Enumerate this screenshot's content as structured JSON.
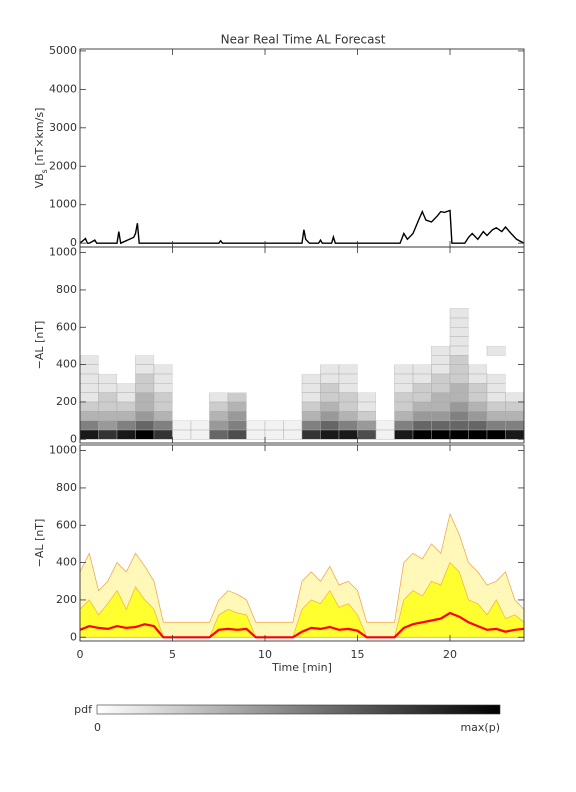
{
  "chart_data": [
    {
      "type": "line",
      "title": "Near Real Time AL Forecast",
      "ylabel": "VB",
      "ylabel_sub": "s",
      "ylabel_unit": " [nT×km/s]",
      "xlim": [
        0,
        24
      ],
      "xticks": [
        0,
        5,
        10,
        15,
        20
      ],
      "show_xtick_labels": false,
      "ylim": [
        -100,
        5050
      ],
      "yticks": [
        0,
        1000,
        2000,
        3000,
        4000,
        5000
      ],
      "color": "#000000",
      "x": [
        0,
        0.3,
        0.4,
        0.5,
        0.8,
        0.9,
        1,
        2,
        2.1,
        2.2,
        2.9,
        3.0,
        3.1,
        3.2,
        4.5,
        7.5,
        7.6,
        7.7,
        12,
        12.1,
        12.2,
        12.4,
        12.9,
        13.0,
        13.1,
        13.6,
        13.7,
        13.8,
        14,
        17.3,
        17.5,
        17.7,
        18,
        18.3,
        18.5,
        18.7,
        19,
        19.3,
        19.5,
        19.7,
        20,
        20.1,
        20.3,
        20.5,
        20.8,
        21,
        21.2,
        21.5,
        21.8,
        22,
        22.3,
        22.5,
        22.8,
        23,
        23.3,
        23.6,
        24
      ],
      "values": [
        0,
        120,
        0,
        0,
        80,
        0,
        0,
        0,
        300,
        0,
        150,
        250,
        520,
        0,
        0,
        0,
        60,
        0,
        0,
        350,
        100,
        0,
        0,
        80,
        0,
        0,
        160,
        0,
        0,
        0,
        250,
        100,
        250,
        600,
        820,
        600,
        550,
        700,
        820,
        800,
        850,
        0,
        0,
        0,
        0,
        150,
        250,
        100,
        300,
        200,
        350,
        400,
        300,
        420,
        250,
        100,
        0
      ]
    },
    {
      "type": "heatmap",
      "ylabel": "−AL [nT]",
      "xlim": [
        0,
        24
      ],
      "xticks": [
        0,
        5,
        10,
        15,
        20
      ],
      "show_xtick_labels": false,
      "ylim": [
        -20,
        1030
      ],
      "yticks": [
        0,
        200,
        400,
        600,
        800,
        1000
      ],
      "t_bins": [
        0,
        1,
        2,
        3,
        4,
        5,
        6,
        7,
        8,
        9,
        10,
        11,
        12,
        13,
        14,
        15,
        16,
        17,
        18,
        19,
        20,
        21,
        22,
        23,
        24
      ],
      "al_bins": [
        0,
        50,
        100,
        150,
        200,
        250,
        300,
        350,
        400,
        450,
        500,
        550,
        600,
        650,
        700
      ],
      "pdf": [
        [
          0.9,
          0.8,
          0.9,
          1,
          0.8,
          0.05,
          0.05,
          0.6,
          0.7,
          0.05,
          0.05,
          0.05,
          0.8,
          0.9,
          0.9,
          0.7,
          0.05,
          0.9,
          1,
          1,
          1,
          1,
          1,
          0.9
        ],
        [
          0.5,
          0.4,
          0.5,
          0.6,
          0.5,
          0.05,
          0.05,
          0.4,
          0.5,
          0.05,
          0.05,
          0.05,
          0.5,
          0.6,
          0.5,
          0.4,
          0.05,
          0.5,
          0.6,
          0.6,
          0.6,
          0.6,
          0.5,
          0.5
        ],
        [
          0.3,
          0.3,
          0.3,
          0.4,
          0.3,
          0,
          0,
          0.3,
          0.4,
          0,
          0,
          0,
          0.3,
          0.4,
          0.3,
          0.2,
          0,
          0.3,
          0.4,
          0.4,
          0.5,
          0.4,
          0.3,
          0.3
        ],
        [
          0.2,
          0.2,
          0.2,
          0.3,
          0.2,
          0,
          0,
          0.2,
          0.3,
          0,
          0,
          0,
          0.2,
          0.3,
          0.2,
          0.1,
          0,
          0.2,
          0.3,
          0.3,
          0.4,
          0.3,
          0.2,
          0.2
        ],
        [
          0.1,
          0.2,
          0.1,
          0.3,
          0.2,
          0,
          0,
          0.1,
          0.2,
          0,
          0,
          0,
          0.1,
          0.2,
          0.2,
          0.1,
          0,
          0.2,
          0.2,
          0.3,
          0.3,
          0.2,
          0.1,
          0.1
        ],
        [
          0.1,
          0.1,
          0.1,
          0.2,
          0.1,
          0,
          0,
          0,
          0,
          0,
          0,
          0,
          0.1,
          0.2,
          0.1,
          0,
          0,
          0.1,
          0.2,
          0.2,
          0.3,
          0.2,
          0.1,
          0
        ],
        [
          0.1,
          0.1,
          0,
          0.2,
          0.1,
          0,
          0,
          0,
          0,
          0,
          0,
          0,
          0.1,
          0.1,
          0.1,
          0,
          0,
          0.1,
          0.1,
          0.2,
          0.2,
          0.1,
          0.1,
          0
        ],
        [
          0.1,
          0,
          0,
          0.1,
          0.1,
          0,
          0,
          0,
          0,
          0,
          0,
          0,
          0,
          0.1,
          0.1,
          0,
          0,
          0.1,
          0.1,
          0.1,
          0.2,
          0.1,
          0,
          0
        ],
        [
          0.1,
          0,
          0,
          0.1,
          0,
          0,
          0,
          0,
          0,
          0,
          0,
          0,
          0,
          0,
          0,
          0,
          0,
          0,
          0,
          0.1,
          0.2,
          0,
          0,
          0
        ],
        [
          0,
          0,
          0,
          0,
          0,
          0,
          0,
          0,
          0,
          0,
          0,
          0,
          0,
          0,
          0,
          0,
          0,
          0,
          0,
          0.1,
          0.1,
          0,
          0.1,
          0
        ],
        [
          0,
          0,
          0,
          0,
          0,
          0,
          0,
          0,
          0,
          0,
          0,
          0,
          0,
          0,
          0,
          0,
          0,
          0,
          0,
          0,
          0.1,
          0,
          0,
          0
        ],
        [
          0,
          0,
          0,
          0,
          0,
          0,
          0,
          0,
          0,
          0,
          0,
          0,
          0,
          0,
          0,
          0,
          0,
          0,
          0,
          0,
          0.1,
          0,
          0,
          0
        ],
        [
          0,
          0,
          0,
          0,
          0,
          0,
          0,
          0,
          0,
          0,
          0,
          0,
          0,
          0,
          0,
          0,
          0,
          0,
          0,
          0,
          0.1,
          0,
          0,
          0
        ],
        [
          0,
          0,
          0,
          0,
          0,
          0,
          0,
          0,
          0,
          0,
          0,
          0,
          0,
          0,
          0,
          0,
          0,
          0,
          0,
          0,
          0.1,
          0,
          0,
          0
        ]
      ]
    },
    {
      "type": "area",
      "ylabel": "−AL [nT]",
      "xlabel": "Time [min]",
      "xlim": [
        0,
        24
      ],
      "xticks": [
        0,
        5,
        10,
        15,
        20
      ],
      "show_xtick_labels": true,
      "ylim": [
        -20,
        1030
      ],
      "yticks": [
        0,
        200,
        400,
        600,
        800,
        1000
      ],
      "x": [
        0,
        0.5,
        1,
        1.5,
        2,
        2.5,
        3,
        3.5,
        4,
        4.5,
        5,
        5.5,
        6,
        6.5,
        7,
        7.5,
        8,
        8.5,
        9,
        9.5,
        10,
        10.5,
        11,
        11.5,
        12,
        12.5,
        13,
        13.5,
        14,
        14.5,
        15,
        15.5,
        16,
        16.5,
        17,
        17.5,
        18,
        18.5,
        19,
        19.5,
        20,
        20.5,
        21,
        21.5,
        22,
        22.5,
        23,
        23.5,
        24
      ],
      "series": [
        {
          "style": "area",
          "color": "#fff8b8",
          "stroke": "#f0a040",
          "values": [
            350,
            450,
            250,
            300,
            400,
            350,
            450,
            380,
            300,
            80,
            80,
            80,
            80,
            80,
            80,
            200,
            250,
            230,
            200,
            80,
            80,
            80,
            80,
            80,
            300,
            350,
            300,
            380,
            280,
            300,
            250,
            80,
            80,
            80,
            80,
            400,
            450,
            420,
            500,
            450,
            660,
            550,
            400,
            350,
            280,
            300,
            350,
            200,
            150
          ]
        },
        {
          "style": "area",
          "color": "#ffff30",
          "stroke": "#f0b040",
          "values": [
            150,
            200,
            120,
            180,
            250,
            150,
            270,
            200,
            150,
            0,
            0,
            0,
            0,
            0,
            0,
            120,
            150,
            130,
            120,
            0,
            0,
            0,
            0,
            0,
            150,
            200,
            180,
            250,
            160,
            180,
            120,
            0,
            0,
            0,
            0,
            200,
            250,
            220,
            300,
            280,
            400,
            350,
            200,
            180,
            120,
            200,
            100,
            120,
            80
          ]
        },
        {
          "style": "line",
          "color": "#ff0000",
          "values": [
            40,
            60,
            50,
            45,
            60,
            50,
            55,
            70,
            60,
            0,
            0,
            0,
            0,
            0,
            0,
            40,
            45,
            40,
            45,
            0,
            0,
            0,
            0,
            0,
            30,
            50,
            45,
            55,
            40,
            45,
            35,
            0,
            0,
            0,
            0,
            50,
            70,
            80,
            90,
            100,
            130,
            110,
            80,
            60,
            40,
            45,
            30,
            40,
            45
          ]
        }
      ]
    }
  ],
  "colorbar": {
    "label": "pdf",
    "min_label": "0",
    "max_label": "max(p)"
  }
}
